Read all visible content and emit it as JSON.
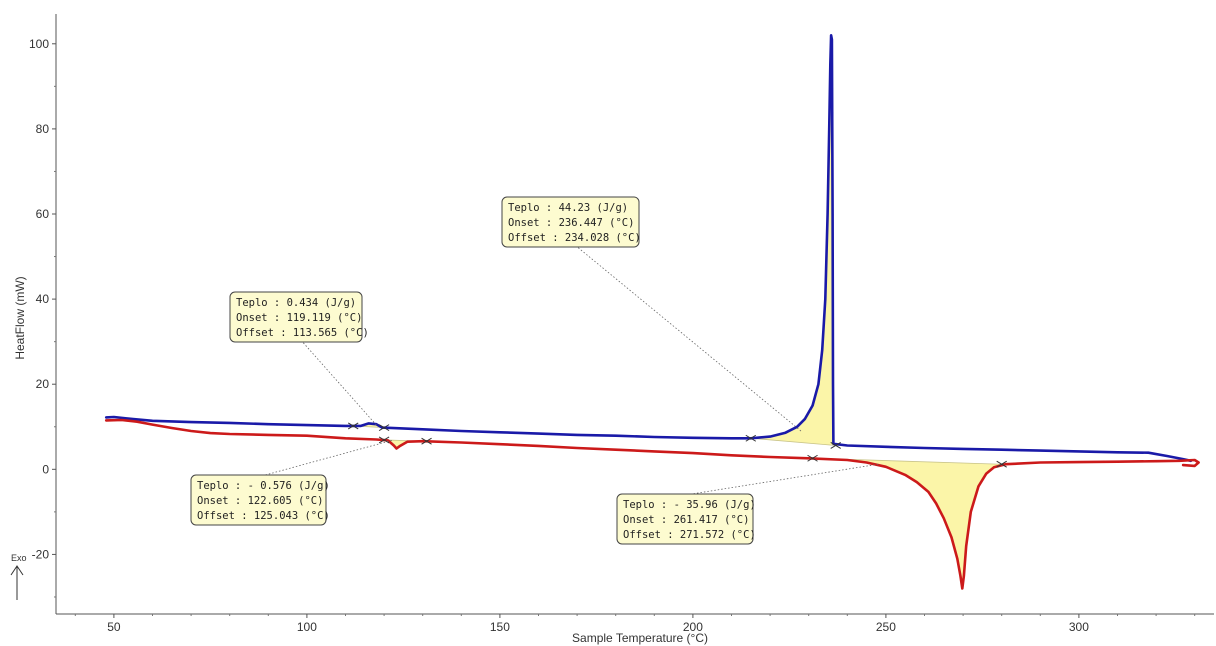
{
  "chart_data": {
    "type": "line",
    "xlabel": "Sample Temperature (°C)",
    "ylabel": "HeatFlow (mW)",
    "xlim": [
      35,
      335
    ],
    "ylim": [
      -34,
      107
    ],
    "x_ticks": [
      50,
      100,
      150,
      200,
      250,
      300
    ],
    "y_ticks": [
      -20,
      0,
      20,
      40,
      60,
      80,
      100
    ],
    "grid": false,
    "exo_label": "Exo",
    "series": [
      {
        "color": "#1a1aa8",
        "points": [
          [
            48,
            12.2
          ],
          [
            50,
            12.3
          ],
          [
            55,
            11.8
          ],
          [
            60,
            11.4
          ],
          [
            70,
            11.1
          ],
          [
            80,
            10.9
          ],
          [
            90,
            10.6
          ],
          [
            100,
            10.4
          ],
          [
            110,
            10.2
          ],
          [
            114,
            10.2
          ],
          [
            116,
            10.8
          ],
          [
            118,
            10.6
          ],
          [
            119.5,
            9.8
          ],
          [
            130,
            9.4
          ],
          [
            140,
            9.0
          ],
          [
            150,
            8.7
          ],
          [
            160,
            8.4
          ],
          [
            170,
            8.1
          ],
          [
            180,
            7.9
          ],
          [
            190,
            7.6
          ],
          [
            200,
            7.4
          ],
          [
            210,
            7.3
          ],
          [
            215,
            7.3
          ],
          [
            220,
            7.7
          ],
          [
            224,
            8.6
          ],
          [
            227,
            10
          ],
          [
            229,
            11.8
          ],
          [
            231,
            15
          ],
          [
            232.5,
            20
          ],
          [
            233.5,
            28
          ],
          [
            234.3,
            40
          ],
          [
            234.9,
            60
          ],
          [
            235.3,
            80
          ],
          [
            235.6,
            95
          ],
          [
            235.8,
            102
          ],
          [
            236,
            101
          ],
          [
            236.2,
            60
          ],
          [
            236.3,
            20
          ],
          [
            236.4,
            6
          ],
          [
            240,
            5.6
          ],
          [
            250,
            5.3
          ],
          [
            260,
            5.0
          ],
          [
            270,
            4.8
          ],
          [
            280,
            4.6
          ],
          [
            290,
            4.4
          ],
          [
            300,
            4.2
          ],
          [
            310,
            4.0
          ],
          [
            318,
            3.9
          ],
          [
            323,
            3.1
          ],
          [
            327,
            2.4
          ],
          [
            329,
            2.0
          ]
        ]
      },
      {
        "color": "#cc1a1a",
        "points": [
          [
            48,
            11.5
          ],
          [
            52,
            11.6
          ],
          [
            56,
            11.2
          ],
          [
            60,
            10.5
          ],
          [
            65,
            9.7
          ],
          [
            70,
            9.0
          ],
          [
            75,
            8.5
          ],
          [
            80,
            8.3
          ],
          [
            90,
            8.1
          ],
          [
            100,
            7.9
          ],
          [
            110,
            7.3
          ],
          [
            118,
            7.0
          ],
          [
            121,
            6.8
          ],
          [
            122.5,
            5.6
          ],
          [
            123.2,
            4.9
          ],
          [
            124,
            5.4
          ],
          [
            126,
            6.5
          ],
          [
            130,
            6.6
          ],
          [
            140,
            6.3
          ],
          [
            150,
            5.9
          ],
          [
            160,
            5.5
          ],
          [
            170,
            5.0
          ],
          [
            180,
            4.6
          ],
          [
            190,
            4.2
          ],
          [
            200,
            3.8
          ],
          [
            210,
            3.3
          ],
          [
            220,
            2.9
          ],
          [
            230,
            2.6
          ],
          [
            240,
            2.2
          ],
          [
            245,
            1.6
          ],
          [
            250,
            0.6
          ],
          [
            255,
            -1.3
          ],
          [
            258,
            -3
          ],
          [
            261,
            -5.3
          ],
          [
            263,
            -8
          ],
          [
            265,
            -11.5
          ],
          [
            267,
            -16
          ],
          [
            268.5,
            -21
          ],
          [
            269.3,
            -25
          ],
          [
            269.8,
            -28
          ],
          [
            270.2,
            -25
          ],
          [
            270.8,
            -18
          ],
          [
            272,
            -10
          ],
          [
            274,
            -4
          ],
          [
            276,
            -1
          ],
          [
            278,
            0.5
          ],
          [
            281,
            1.2
          ],
          [
            290,
            1.6
          ],
          [
            300,
            1.7
          ],
          [
            310,
            1.8
          ],
          [
            320,
            1.9
          ],
          [
            326,
            2.0
          ],
          [
            330,
            2.2
          ],
          [
            331,
            1.6
          ],
          [
            330,
            0.8
          ],
          [
            327,
            1.0
          ]
        ]
      }
    ],
    "annotations": [
      {
        "lines": [
          {
            "label": "Teplo : ",
            "value": "0.434",
            "unit": "(J/g)"
          },
          {
            "label": "Onset : ",
            "value": "119.119",
            "unit": "(°C)"
          },
          {
            "label": "Offset : ",
            "value": "113.565",
            "unit": "(°C)"
          }
        ],
        "anchor": [
          118,
          10.4
        ]
      },
      {
        "lines": [
          {
            "label": "Teplo : ",
            "value": "- 0.576",
            "unit": "(J/g)"
          },
          {
            "label": "Onset : ",
            "value": "122.605",
            "unit": "(°C)"
          },
          {
            "label": "Offset : ",
            "value": "125.043",
            "unit": "(°C)"
          }
        ],
        "anchor": [
          122,
          6.8
        ]
      },
      {
        "lines": [
          {
            "label": "Teplo : ",
            "value": "44.23",
            "unit": "(J/g)"
          },
          {
            "label": "Onset : ",
            "value": "236.447",
            "unit": "(°C)"
          },
          {
            "label": "Offset : ",
            "value": "234.028",
            "unit": "(°C)"
          }
        ],
        "anchor": [
          228,
          9.0
        ]
      },
      {
        "lines": [
          {
            "label": "Teplo : ",
            "value": "- 35.96",
            "unit": "(J/g)"
          },
          {
            "label": "Onset : ",
            "value": "261.417",
            "unit": "(°C)"
          },
          {
            "label": "Offset : ",
            "value": "271.572",
            "unit": "(°C)"
          }
        ],
        "anchor": [
          248,
          1.2
        ]
      }
    ],
    "integration_markers": [
      {
        "points": [
          [
            112,
            10.2
          ],
          [
            120,
            9.8
          ]
        ],
        "color": "#1a1aa8"
      },
      {
        "points": [
          [
            120,
            6.9
          ],
          [
            131,
            6.6
          ]
        ],
        "color": "#cc1a1a"
      },
      {
        "points": [
          [
            215,
            7.3
          ],
          [
            237,
            5.6
          ]
        ],
        "color": "#1a1aa8"
      },
      {
        "points": [
          [
            231,
            2.6
          ],
          [
            280,
            1.2
          ]
        ],
        "color": "#cc1a1a"
      }
    ],
    "fill_color": "#fbf5a8"
  }
}
